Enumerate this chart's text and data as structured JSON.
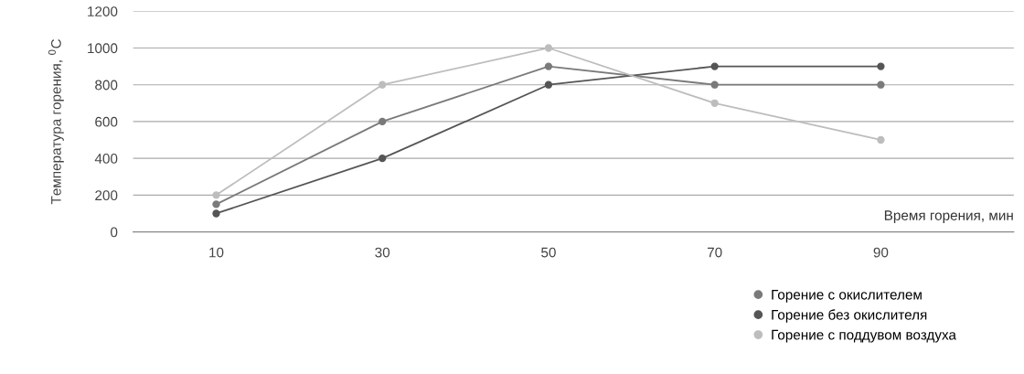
{
  "chart_data": {
    "type": "line",
    "xlabel": "Время горения, мин",
    "ylabel": "Температура горения, $^{0}$C",
    "categories": [
      "10",
      "30",
      "50",
      "70",
      "90"
    ],
    "series": [
      {
        "name": "Горение с окислителем",
        "color": "#7a7a7a",
        "values": [
          150,
          600,
          900,
          800,
          800
        ]
      },
      {
        "name": "Горение без окислителя",
        "color": "#555555",
        "values": [
          100,
          400,
          800,
          900,
          900
        ]
      },
      {
        "name": "Горение с поддувом воздуха",
        "color": "#bdbdbd",
        "values": [
          200,
          800,
          1000,
          700,
          500
        ]
      }
    ],
    "ylim": [
      0,
      1200
    ],
    "yticks": [
      0,
      200,
      400,
      600,
      800,
      1000,
      1200
    ],
    "grid": "y",
    "legend": "bottom right",
    "marker": "circle",
    "line_style": "solid"
  }
}
